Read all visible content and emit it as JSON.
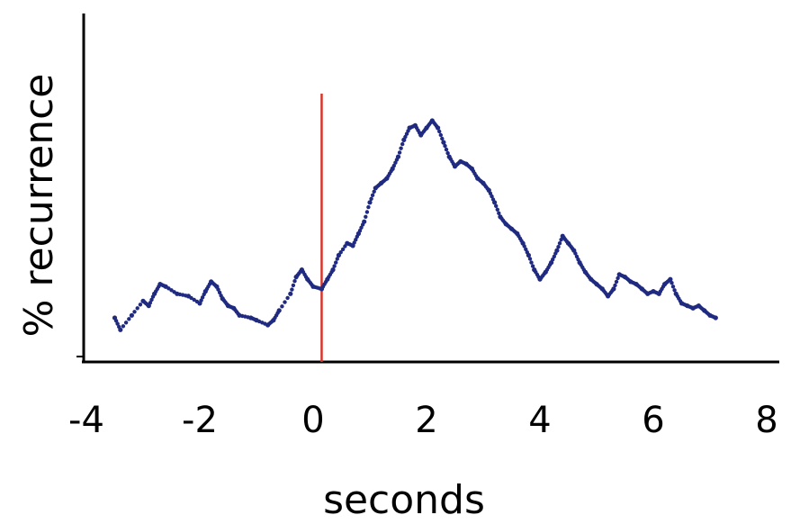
{
  "chart_data": {
    "type": "scatter",
    "title": "",
    "xlabel": "seconds",
    "ylabel": "% recurrence",
    "xlim": [
      -4,
      8
    ],
    "ylim": [
      0,
      100
    ],
    "xticks": [
      -4,
      -2,
      0,
      2,
      4,
      6,
      8
    ],
    "yticks": [],
    "grid": false,
    "legend": "none",
    "event_marker": {
      "x": 0.15,
      "color": "#d9342b"
    },
    "series": [
      {
        "color": "#1f2a80",
        "points": [
          [
            -3.5,
            12
          ],
          [
            -3.4,
            7
          ],
          [
            -3.2,
            13
          ],
          [
            -3.0,
            19
          ],
          [
            -2.9,
            17
          ],
          [
            -2.8,
            22
          ],
          [
            -2.7,
            26
          ],
          [
            -2.6,
            25
          ],
          [
            -2.4,
            22
          ],
          [
            -2.2,
            21
          ],
          [
            -2.0,
            18
          ],
          [
            -1.9,
            23
          ],
          [
            -1.8,
            27
          ],
          [
            -1.7,
            25
          ],
          [
            -1.6,
            20
          ],
          [
            -1.5,
            17
          ],
          [
            -1.4,
            16
          ],
          [
            -1.3,
            13
          ],
          [
            -1.1,
            12
          ],
          [
            -1.0,
            11
          ],
          [
            -0.8,
            9
          ],
          [
            -0.7,
            11
          ],
          [
            -0.6,
            15
          ],
          [
            -0.4,
            22
          ],
          [
            -0.3,
            29
          ],
          [
            -0.2,
            32
          ],
          [
            -0.1,
            28
          ],
          [
            0.0,
            25
          ],
          [
            0.15,
            24
          ],
          [
            0.25,
            28
          ],
          [
            0.35,
            32
          ],
          [
            0.45,
            38
          ],
          [
            0.6,
            43
          ],
          [
            0.7,
            42
          ],
          [
            0.8,
            47
          ],
          [
            0.9,
            52
          ],
          [
            1.0,
            60
          ],
          [
            1.1,
            66
          ],
          [
            1.2,
            68
          ],
          [
            1.3,
            70
          ],
          [
            1.4,
            74
          ],
          [
            1.5,
            79
          ],
          [
            1.6,
            86
          ],
          [
            1.7,
            91
          ],
          [
            1.8,
            92
          ],
          [
            1.9,
            88
          ],
          [
            2.0,
            91
          ],
          [
            2.1,
            94
          ],
          [
            2.2,
            91
          ],
          [
            2.3,
            85
          ],
          [
            2.4,
            79
          ],
          [
            2.5,
            75
          ],
          [
            2.6,
            77
          ],
          [
            2.7,
            76
          ],
          [
            2.8,
            74
          ],
          [
            2.9,
            70
          ],
          [
            3.0,
            68
          ],
          [
            3.1,
            65
          ],
          [
            3.2,
            60
          ],
          [
            3.3,
            54
          ],
          [
            3.4,
            51
          ],
          [
            3.5,
            49
          ],
          [
            3.6,
            47
          ],
          [
            3.7,
            43
          ],
          [
            3.8,
            38
          ],
          [
            3.9,
            32
          ],
          [
            4.0,
            28
          ],
          [
            4.1,
            31
          ],
          [
            4.2,
            35
          ],
          [
            4.3,
            40
          ],
          [
            4.4,
            46
          ],
          [
            4.5,
            43
          ],
          [
            4.6,
            40
          ],
          [
            4.7,
            35
          ],
          [
            4.8,
            31
          ],
          [
            4.9,
            28
          ],
          [
            5.0,
            26
          ],
          [
            5.1,
            24
          ],
          [
            5.2,
            21
          ],
          [
            5.3,
            24
          ],
          [
            5.4,
            30
          ],
          [
            5.5,
            29
          ],
          [
            5.6,
            27
          ],
          [
            5.7,
            26
          ],
          [
            5.8,
            24
          ],
          [
            5.9,
            22
          ],
          [
            6.0,
            23
          ],
          [
            6.1,
            22
          ],
          [
            6.2,
            26
          ],
          [
            6.3,
            28
          ],
          [
            6.4,
            22
          ],
          [
            6.5,
            18
          ],
          [
            6.6,
            17
          ],
          [
            6.7,
            16
          ],
          [
            6.8,
            17
          ],
          [
            6.9,
            15
          ],
          [
            7.0,
            13
          ],
          [
            7.1,
            12
          ]
        ]
      }
    ]
  }
}
